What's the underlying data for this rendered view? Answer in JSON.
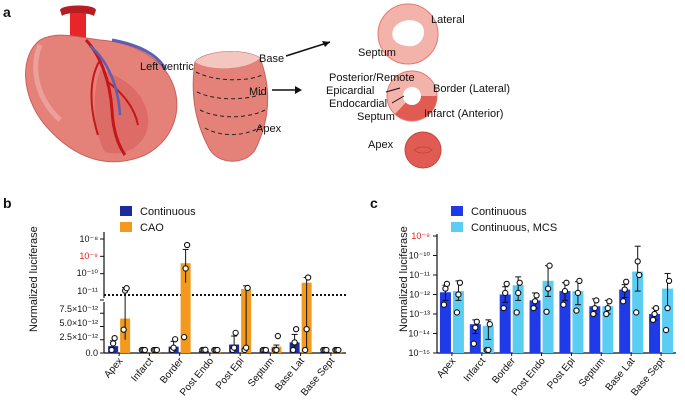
{
  "panels": {
    "a": {
      "label": "a",
      "heart_label": "Left ventricle",
      "slice_labels": {
        "base": "Base",
        "mid": "Mid",
        "apex": "Apex"
      },
      "section_labels": {
        "septum_top": "Septum",
        "lateral": "Lateral",
        "posterior_remote": "Posterior/Remote",
        "epicardial": "Epicardial",
        "endocardial": "Endocardial",
        "border_lateral": "Border (Lateral)",
        "septum_mid": "Septum",
        "infarct_anterior": "Infarct (Anterior)",
        "apex_section": "Apex"
      }
    },
    "b": {
      "label": "b"
    },
    "c": {
      "label": "c"
    }
  },
  "colors": {
    "continuous_b": "#1d2a9e",
    "cao": "#f39a1e",
    "continuous_c": "#1f3be8",
    "mcs": "#5ccdf2",
    "red_tick": "#e2231a",
    "heart": "#e4827a"
  },
  "chart_data": [
    {
      "panel": "b",
      "type": "bar",
      "scale": "broken-axis (linear below, log above)",
      "ylabel": "Normalized luciferase",
      "categories": [
        "Apex",
        "Infarct",
        "Border",
        "Post Endo",
        "Post Epi",
        "Septum",
        "Base Lat",
        "Base Sept"
      ],
      "linear_ticks": [
        "0.0",
        "2.5×10⁻¹²",
        "5.0×10⁻¹²",
        "7.5×10⁻¹²"
      ],
      "log_ticks": [
        "10⁻¹¹",
        "10⁻¹⁰",
        "10⁻⁹",
        "10⁻⁸"
      ],
      "highlight_tick": "10⁻⁹",
      "threshold_line": 1e-11,
      "series": [
        {
          "name": "Continuous",
          "values": [
            1.3e-12,
            1e-13,
            1.2e-12,
            4e-13,
            1.6e-12,
            3e-13,
            2e-12,
            2e-13
          ],
          "err": [
            1e-12,
            5e-14,
            1e-12,
            3e-13,
            1.6e-12,
            2e-13,
            1.5e-12,
            1e-13
          ],
          "points": [
            [
              5e-13,
              1.8e-12,
              2.8e-12
            ],
            [
              1e-13,
              1e-13,
              1e-13
            ],
            [
              5e-13,
              1e-12,
              2.6e-12
            ],
            [
              2e-13,
              3e-13,
              6e-13
            ],
            [
              1e-13,
              1e-12,
              3.8e-12
            ],
            [
              1e-13,
              2e-13,
              4e-13
            ],
            [
              2e-13,
              2e-12,
              4.5e-12
            ],
            [
              1e-13,
              2e-13,
              2e-13
            ]
          ]
        },
        {
          "name": "CAO",
          "values": [
            6.5e-12,
            1e-13,
            4e-10,
            2e-13,
            1.3e-11,
            1.2e-12,
            3e-11,
            2e-13
          ],
          "err_low": [
            4e-12,
            5e-14,
            3.7e-10,
            1e-13,
            1.25e-11,
            1e-12,
            2.9e-11,
            1e-13
          ],
          "err_high": [
            1.6e-11,
            2e-13,
            2.5e-09,
            3e-13,
            2e-11,
            1.5e-12,
            6e-11,
            3e-13
          ],
          "points": [
            [
              4.4e-12,
              1.05e-11,
              1.45e-11
            ],
            [
              1e-13,
              1e-13,
              1e-13
            ],
            [
              3e-12,
              2e-10,
              4.5e-09
            ],
            [
              1e-13,
              2e-13,
              3e-13
            ],
            [
              3e-13,
              1e-12,
              1.5e-11
            ],
            [
              4e-13,
              4e-13,
              3.2e-12
            ],
            [
              4e-13,
              4.5e-12,
              6e-11
            ],
            [
              1e-13,
              2e-13,
              3e-13
            ]
          ]
        }
      ]
    },
    {
      "panel": "c",
      "type": "bar",
      "scale": "log",
      "ylabel": "Normalized luciferase",
      "categories": [
        "Apex",
        "Infarct",
        "Border",
        "Post Endo",
        "Post Epi",
        "Septum",
        "Base Lat",
        "Base Sept"
      ],
      "y_ticks": [
        "10⁻¹⁵",
        "10⁻¹⁴",
        "10⁻¹³",
        "10⁻¹²",
        "10⁻¹¹",
        "10⁻¹⁰",
        "10⁻⁹"
      ],
      "highlight_tick": "10⁻⁹",
      "ylim": [
        1e-15,
        1e-09
      ],
      "series": [
        {
          "name": "Continuous",
          "values": [
            1.3e-12,
            3e-14,
            1e-12,
            5e-13,
            1.5e-12,
            2.5e-13,
            1.8e-12,
            1e-13
          ],
          "err_low": [
            5e-13,
            1e-14,
            4e-13,
            2e-13,
            5e-13,
            1e-13,
            7e-13,
            5e-14
          ],
          "err_high": [
            3e-12,
            5e-14,
            2.5e-12,
            1.2e-12,
            4e-12,
            6e-13,
            3.2e-12,
            2e-13
          ],
          "points": [
            [
              3e-13,
              2e-12,
              3.5e-12
            ],
            [
              3e-15,
              2e-14,
              4e-14
            ],
            [
              2e-13,
              1.2e-12,
              3.5e-12
            ],
            [
              2e-13,
              4.5e-13,
              9e-13
            ],
            [
              3e-13,
              1.5e-12,
              4e-12
            ],
            [
              1e-13,
              2e-13,
              5e-13
            ],
            [
              4.5e-13,
              1.8e-12,
              4.5e-12
            ],
            [
              5e-14,
              1e-13,
              2e-13
            ]
          ]
        },
        {
          "name": "Continuous, MCS",
          "values": [
            1.5e-12,
            2.5e-14,
            3e-12,
            5e-12,
            1.5e-12,
            2.5e-13,
            1.5e-11,
            2e-12
          ],
          "err_low": [
            5e-13,
            5e-15,
            5e-13,
            8e-13,
            3e-13,
            1e-13,
            1.5e-12,
            2e-13
          ],
          "err_high": [
            5e-12,
            5e-14,
            8e-12,
            3e-11,
            4.5e-12,
            5e-13,
            3e-10,
            1.2e-11
          ],
          "points": [
            [
              1.2e-13,
              1e-12,
              4e-12
            ],
            [
              1e-15,
              1e-15,
              3e-14
            ],
            [
              1.2e-13,
              1.2e-12,
              4e-12
            ],
            [
              1.3e-13,
              2e-12,
              3e-11
            ],
            [
              1.5e-13,
              1.2e-12,
              5e-12
            ],
            [
              1e-13,
              2e-13,
              4.5e-13
            ],
            [
              1.2e-13,
              5e-11,
              1e-11
            ],
            [
              1.5e-14,
              2e-13,
              5e-12
            ]
          ]
        }
      ]
    }
  ]
}
